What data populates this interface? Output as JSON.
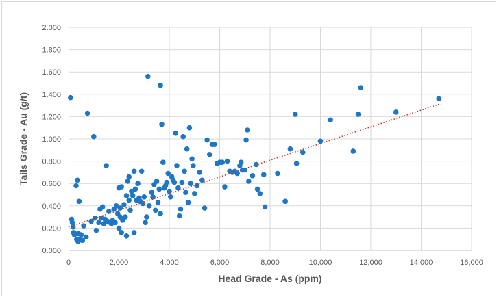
{
  "chart_data": {
    "type": "scatter",
    "title": "",
    "xlabel": "Head Grade - As (ppm)",
    "ylabel": "Tails Grade - Au (g/t)",
    "xlim": [
      0,
      16000
    ],
    "ylim": [
      0,
      2.0
    ],
    "x_ticks": [
      0,
      2000,
      4000,
      6000,
      8000,
      10000,
      12000,
      14000,
      16000
    ],
    "x_tick_labels": [
      "0",
      "2,000",
      "4,000",
      "6,000",
      "8,000",
      "10,000",
      "12,000",
      "14,000",
      "16,000"
    ],
    "y_ticks": [
      0,
      0.2,
      0.4,
      0.6,
      0.8,
      1.0,
      1.2,
      1.4,
      1.6,
      1.8,
      2.0
    ],
    "y_tick_labels": [
      "0.000",
      "0.200",
      "0.400",
      "0.600",
      "0.800",
      "1.000",
      "1.200",
      "1.400",
      "1.600",
      "1.800",
      "2.000"
    ],
    "grid": true,
    "legend": "none",
    "marker_color": "#1f77c4",
    "trendline": {
      "type": "linear",
      "style": "dotted",
      "color": "#c0392b",
      "points": [
        [
          0,
          0.21
        ],
        [
          14700,
          1.31
        ]
      ]
    },
    "series": [
      {
        "points": [
          [
            80,
            1.37
          ],
          [
            120,
            0.28
          ],
          [
            150,
            0.25
          ],
          [
            180,
            0.21
          ],
          [
            200,
            0.16
          ],
          [
            230,
            0.14
          ],
          [
            260,
            0.15
          ],
          [
            300,
            0.58
          ],
          [
            320,
            0.1
          ],
          [
            350,
            0.63
          ],
          [
            380,
            0.08
          ],
          [
            400,
            0.15
          ],
          [
            420,
            0.44
          ],
          [
            450,
            0.1
          ],
          [
            500,
            0.14
          ],
          [
            550,
            0.09
          ],
          [
            600,
            0.22
          ],
          [
            700,
            0.12
          ],
          [
            750,
            1.23
          ],
          [
            900,
            0.26
          ],
          [
            1000,
            1.02
          ],
          [
            1050,
            0.29
          ],
          [
            1100,
            0.18
          ],
          [
            1200,
            0.25
          ],
          [
            1250,
            0.37
          ],
          [
            1300,
            0.29
          ],
          [
            1350,
            0.39
          ],
          [
            1400,
            0.24
          ],
          [
            1450,
            0.28
          ],
          [
            1500,
            0.76
          ],
          [
            1550,
            0.26
          ],
          [
            1600,
            0.35
          ],
          [
            1650,
            0.25
          ],
          [
            1700,
            0.24
          ],
          [
            1750,
            0.27
          ],
          [
            1800,
            0.37
          ],
          [
            1850,
            0.25
          ],
          [
            1900,
            0.4
          ],
          [
            1950,
            0.33
          ],
          [
            2000,
            0.56
          ],
          [
            2000,
            0.2
          ],
          [
            2050,
            0.3
          ],
          [
            2050,
            0.38
          ],
          [
            2100,
            0.57
          ],
          [
            2100,
            0.16
          ],
          [
            2150,
            0.27
          ],
          [
            2200,
            0.41
          ],
          [
            2250,
            0.3
          ],
          [
            2300,
            0.49
          ],
          [
            2300,
            0.13
          ],
          [
            2350,
            0.62
          ],
          [
            2400,
            0.66
          ],
          [
            2400,
            0.45
          ],
          [
            2450,
            0.36
          ],
          [
            2500,
            0.53
          ],
          [
            2550,
            0.49
          ],
          [
            2600,
            0.71
          ],
          [
            2600,
            0.16
          ],
          [
            2650,
            0.55
          ],
          [
            2700,
            0.45
          ],
          [
            2750,
            0.6
          ],
          [
            2800,
            0.47
          ],
          [
            2850,
            0.44
          ],
          [
            2900,
            0.71
          ],
          [
            2950,
            0.42
          ],
          [
            3000,
            0.48
          ],
          [
            3050,
            0.25
          ],
          [
            3100,
            0.3
          ],
          [
            3150,
            1.56
          ],
          [
            3200,
            0.4
          ],
          [
            3300,
            0.52
          ],
          [
            3350,
            0.48
          ],
          [
            3400,
            0.59
          ],
          [
            3450,
            0.36
          ],
          [
            3500,
            0.62
          ],
          [
            3550,
            0.43
          ],
          [
            3600,
            0.55
          ],
          [
            3650,
            1.48
          ],
          [
            3650,
            0.33
          ],
          [
            3700,
            1.13
          ],
          [
            3750,
            0.79
          ],
          [
            3800,
            0.56
          ],
          [
            3850,
            0.58
          ],
          [
            3900,
            0.61
          ],
          [
            3950,
            0.69
          ],
          [
            4000,
            0.53
          ],
          [
            4050,
            0.48
          ],
          [
            4100,
            0.66
          ],
          [
            4150,
            0.63
          ],
          [
            4200,
            0.61
          ],
          [
            4250,
            1.05
          ],
          [
            4300,
            0.76
          ],
          [
            4350,
            0.56
          ],
          [
            4400,
            0.31
          ],
          [
            4450,
            0.37
          ],
          [
            4500,
            0.61
          ],
          [
            4550,
            1.02
          ],
          [
            4600,
            0.71
          ],
          [
            4650,
            0.52
          ],
          [
            4700,
            0.91
          ],
          [
            4750,
            0.43
          ],
          [
            4800,
            1.1
          ],
          [
            4850,
            0.6
          ],
          [
            4900,
            0.82
          ],
          [
            4950,
            0.76
          ],
          [
            5000,
            0.51
          ],
          [
            5100,
            0.58
          ],
          [
            5200,
            0.7
          ],
          [
            5300,
            0.63
          ],
          [
            5400,
            0.38
          ],
          [
            5500,
            0.99
          ],
          [
            5600,
            0.86
          ],
          [
            5700,
            0.95
          ],
          [
            5800,
            0.95
          ],
          [
            5900,
            0.78
          ],
          [
            6000,
            0.79
          ],
          [
            6100,
            0.79
          ],
          [
            6200,
            0.57
          ],
          [
            6300,
            0.8
          ],
          [
            6400,
            0.71
          ],
          [
            6500,
            0.7
          ],
          [
            6600,
            0.71
          ],
          [
            6700,
            0.69
          ],
          [
            6800,
            0.76
          ],
          [
            6850,
            0.79
          ],
          [
            6900,
            0.72
          ],
          [
            7000,
            0.72
          ],
          [
            7050,
            0.99
          ],
          [
            7100,
            1.08
          ],
          [
            7150,
            0.62
          ],
          [
            7300,
            0.67
          ],
          [
            7450,
            0.77
          ],
          [
            7500,
            0.55
          ],
          [
            7600,
            0.51
          ],
          [
            7750,
            0.68
          ],
          [
            7800,
            0.39
          ],
          [
            8300,
            0.69
          ],
          [
            8600,
            0.44
          ],
          [
            8800,
            0.91
          ],
          [
            9000,
            1.22
          ],
          [
            9050,
            0.78
          ],
          [
            9300,
            0.88
          ],
          [
            10000,
            0.98
          ],
          [
            10400,
            1.17
          ],
          [
            11300,
            0.89
          ],
          [
            11500,
            1.22
          ],
          [
            11600,
            1.46
          ],
          [
            13000,
            1.24
          ],
          [
            14700,
            1.36
          ]
        ]
      }
    ]
  }
}
